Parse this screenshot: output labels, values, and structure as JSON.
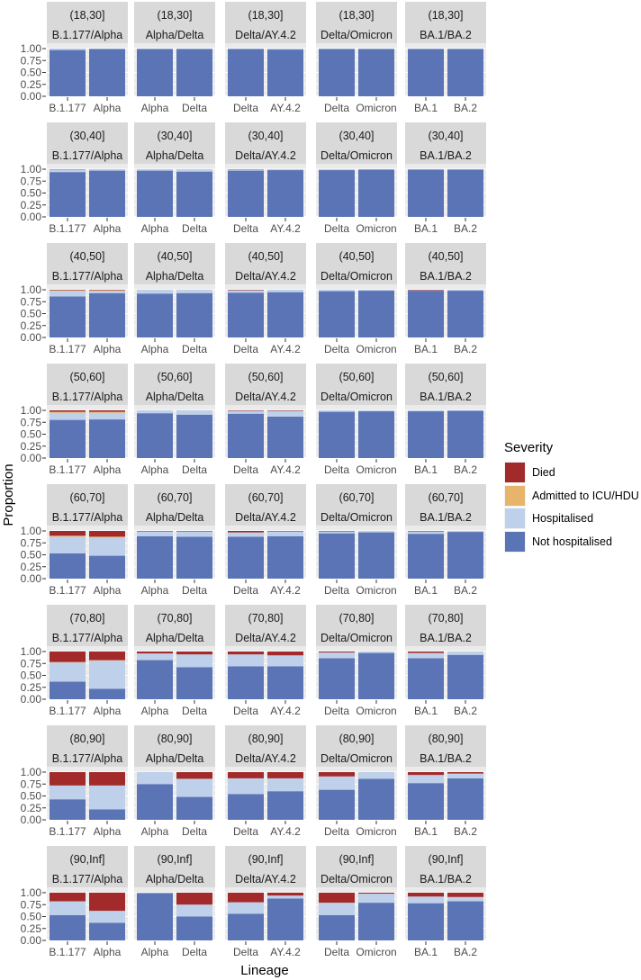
{
  "chart_data": {
    "type": "bar",
    "stacked": true,
    "xlabel": "Lineage",
    "ylabel": "Proportion",
    "ylim": [
      0,
      1
    ],
    "y_ticks": [
      "0.00",
      "0.25",
      "0.50",
      "0.75",
      "1.00"
    ],
    "legend": {
      "title": "Severity",
      "position": "right",
      "items": [
        {
          "name": "Died",
          "color": "#a32a2a"
        },
        {
          "name": "Admitted to ICU/HDU",
          "color": "#e6b46a"
        },
        {
          "name": "Hospitalised",
          "color": "#bed0ea"
        },
        {
          "name": "Not hospitalised",
          "color": "#5b74b6"
        }
      ]
    },
    "columns": [
      {
        "label": "B.1.177/Alpha",
        "categories": [
          "B.1.177",
          "Alpha"
        ]
      },
      {
        "label": "Alpha/Delta",
        "categories": [
          "Alpha",
          "Delta"
        ]
      },
      {
        "label": "Delta/AY.4.2",
        "categories": [
          "Delta",
          "AY.4.2"
        ]
      },
      {
        "label": "Delta/Omicron",
        "categories": [
          "Delta",
          "Omicron"
        ]
      },
      {
        "label": "BA.1/BA.2",
        "categories": [
          "BA.1",
          "BA.2"
        ]
      }
    ],
    "rows": [
      {
        "age": "(18,30]",
        "panels": [
          [
            {
              "not": 0.97,
              "hosp": 0.03,
              "icu": 0.0,
              "died": 0.0
            },
            {
              "not": 0.99,
              "hosp": 0.01,
              "icu": 0.0,
              "died": 0.0
            }
          ],
          [
            {
              "not": 0.99,
              "hosp": 0.01,
              "icu": 0.0,
              "died": 0.0
            },
            {
              "not": 0.99,
              "hosp": 0.01,
              "icu": 0.0,
              "died": 0.0
            }
          ],
          [
            {
              "not": 0.99,
              "hosp": 0.01,
              "icu": 0.0,
              "died": 0.0
            },
            {
              "not": 0.98,
              "hosp": 0.02,
              "icu": 0.0,
              "died": 0.0
            }
          ],
          [
            {
              "not": 0.99,
              "hosp": 0.01,
              "icu": 0.0,
              "died": 0.0
            },
            {
              "not": 0.99,
              "hosp": 0.01,
              "icu": 0.0,
              "died": 0.0
            }
          ],
          [
            {
              "not": 0.99,
              "hosp": 0.01,
              "icu": 0.0,
              "died": 0.0
            },
            {
              "not": 0.99,
              "hosp": 0.01,
              "icu": 0.0,
              "died": 0.0
            }
          ]
        ]
      },
      {
        "age": "(30,40]",
        "panels": [
          [
            {
              "not": 0.94,
              "hosp": 0.05,
              "icu": 0.005,
              "died": 0.005
            },
            {
              "not": 0.97,
              "hosp": 0.03,
              "icu": 0.0,
              "died": 0.0
            }
          ],
          [
            {
              "not": 0.97,
              "hosp": 0.03,
              "icu": 0.0,
              "died": 0.0
            },
            {
              "not": 0.95,
              "hosp": 0.05,
              "icu": 0.0,
              "died": 0.0
            }
          ],
          [
            {
              "not": 0.97,
              "hosp": 0.025,
              "icu": 0.0,
              "died": 0.005
            },
            {
              "not": 0.98,
              "hosp": 0.02,
              "icu": 0.0,
              "died": 0.0
            }
          ],
          [
            {
              "not": 0.98,
              "hosp": 0.02,
              "icu": 0.0,
              "died": 0.0
            },
            {
              "not": 0.99,
              "hosp": 0.01,
              "icu": 0.0,
              "died": 0.0
            }
          ],
          [
            {
              "not": 0.99,
              "hosp": 0.01,
              "icu": 0.0,
              "died": 0.0
            },
            {
              "not": 0.99,
              "hosp": 0.01,
              "icu": 0.0,
              "died": 0.0
            }
          ]
        ]
      },
      {
        "age": "(40,50]",
        "panels": [
          [
            {
              "not": 0.86,
              "hosp": 0.12,
              "icu": 0.01,
              "died": 0.01
            },
            {
              "not": 0.93,
              "hosp": 0.05,
              "icu": 0.01,
              "died": 0.01
            }
          ],
          [
            {
              "not": 0.92,
              "hosp": 0.08,
              "icu": 0.0,
              "died": 0.0
            },
            {
              "not": 0.93,
              "hosp": 0.07,
              "icu": 0.0,
              "died": 0.0
            }
          ],
          [
            {
              "not": 0.94,
              "hosp": 0.05,
              "icu": 0.0,
              "died": 0.01
            },
            {
              "not": 0.95,
              "hosp": 0.05,
              "icu": 0.0,
              "died": 0.0
            }
          ],
          [
            {
              "not": 0.97,
              "hosp": 0.03,
              "icu": 0.0,
              "died": 0.0
            },
            {
              "not": 0.98,
              "hosp": 0.02,
              "icu": 0.0,
              "died": 0.0
            }
          ],
          [
            {
              "not": 0.98,
              "hosp": 0.01,
              "icu": 0.0,
              "died": 0.01
            },
            {
              "not": 0.98,
              "hosp": 0.02,
              "icu": 0.0,
              "died": 0.0
            }
          ]
        ]
      },
      {
        "age": "(50,60]",
        "panels": [
          [
            {
              "not": 0.8,
              "hosp": 0.15,
              "icu": 0.02,
              "died": 0.03
            },
            {
              "not": 0.81,
              "hosp": 0.14,
              "icu": 0.02,
              "died": 0.03
            }
          ],
          [
            {
              "not": 0.94,
              "hosp": 0.06,
              "icu": 0.0,
              "died": 0.0
            },
            {
              "not": 0.91,
              "hosp": 0.09,
              "icu": 0.0,
              "died": 0.0
            }
          ],
          [
            {
              "not": 0.93,
              "hosp": 0.06,
              "icu": 0.0,
              "died": 0.01
            },
            {
              "not": 0.87,
              "hosp": 0.12,
              "icu": 0.0,
              "died": 0.01
            }
          ],
          [
            {
              "not": 0.97,
              "hosp": 0.03,
              "icu": 0.0,
              "died": 0.0
            },
            {
              "not": 0.98,
              "hosp": 0.02,
              "icu": 0.0,
              "died": 0.0
            }
          ],
          [
            {
              "not": 0.98,
              "hosp": 0.02,
              "icu": 0.0,
              "died": 0.0
            },
            {
              "not": 0.99,
              "hosp": 0.01,
              "icu": 0.0,
              "died": 0.0
            }
          ]
        ]
      },
      {
        "age": "(60,70]",
        "panels": [
          [
            {
              "not": 0.53,
              "hosp": 0.35,
              "icu": 0.02,
              "died": 0.1
            },
            {
              "not": 0.48,
              "hosp": 0.38,
              "icu": 0.02,
              "died": 0.12
            }
          ],
          [
            {
              "not": 0.89,
              "hosp": 0.1,
              "icu": 0.0,
              "died": 0.01
            },
            {
              "not": 0.88,
              "hosp": 0.11,
              "icu": 0.0,
              "died": 0.01
            }
          ],
          [
            {
              "not": 0.88,
              "hosp": 0.09,
              "icu": 0.0,
              "died": 0.03
            },
            {
              "not": 0.89,
              "hosp": 0.1,
              "icu": 0.0,
              "died": 0.01
            }
          ],
          [
            {
              "not": 0.95,
              "hosp": 0.04,
              "icu": 0.0,
              "died": 0.01
            },
            {
              "not": 0.97,
              "hosp": 0.03,
              "icu": 0.0,
              "died": 0.0
            }
          ],
          [
            {
              "not": 0.94,
              "hosp": 0.05,
              "icu": 0.0,
              "died": 0.01
            },
            {
              "not": 0.98,
              "hosp": 0.02,
              "icu": 0.0,
              "died": 0.0
            }
          ]
        ]
      },
      {
        "age": "(70,80]",
        "panels": [
          [
            {
              "not": 0.37,
              "hosp": 0.4,
              "icu": 0.01,
              "died": 0.22
            },
            {
              "not": 0.22,
              "hosp": 0.59,
              "icu": 0.01,
              "died": 0.18
            }
          ],
          [
            {
              "not": 0.82,
              "hosp": 0.14,
              "icu": 0.0,
              "died": 0.04
            },
            {
              "not": 0.67,
              "hosp": 0.27,
              "icu": 0.0,
              "died": 0.06
            }
          ],
          [
            {
              "not": 0.69,
              "hosp": 0.25,
              "icu": 0.0,
              "died": 0.06
            },
            {
              "not": 0.69,
              "hosp": 0.23,
              "icu": 0.0,
              "died": 0.08
            }
          ],
          [
            {
              "not": 0.86,
              "hosp": 0.12,
              "icu": 0.0,
              "died": 0.02
            },
            {
              "not": 0.97,
              "hosp": 0.03,
              "icu": 0.0,
              "died": 0.0
            }
          ],
          [
            {
              "not": 0.86,
              "hosp": 0.11,
              "icu": 0.0,
              "died": 0.03
            },
            {
              "not": 0.93,
              "hosp": 0.07,
              "icu": 0.0,
              "died": 0.0
            }
          ]
        ]
      },
      {
        "age": "(80,90]",
        "panels": [
          [
            {
              "not": 0.43,
              "hosp": 0.29,
              "icu": 0.0,
              "died": 0.28
            },
            {
              "not": 0.22,
              "hosp": 0.5,
              "icu": 0.0,
              "died": 0.28
            }
          ],
          [
            {
              "not": 0.75,
              "hosp": 0.25,
              "icu": 0.0,
              "died": 0.0
            },
            {
              "not": 0.48,
              "hosp": 0.38,
              "icu": 0.0,
              "died": 0.14
            }
          ],
          [
            {
              "not": 0.54,
              "hosp": 0.33,
              "icu": 0.0,
              "died": 0.13
            },
            {
              "not": 0.6,
              "hosp": 0.27,
              "icu": 0.0,
              "died": 0.13
            }
          ],
          [
            {
              "not": 0.63,
              "hosp": 0.28,
              "icu": 0.0,
              "died": 0.09
            },
            {
              "not": 0.86,
              "hosp": 0.14,
              "icu": 0.0,
              "died": 0.0
            }
          ],
          [
            {
              "not": 0.77,
              "hosp": 0.17,
              "icu": 0.0,
              "died": 0.06
            },
            {
              "not": 0.87,
              "hosp": 0.1,
              "icu": 0.0,
              "died": 0.03
            }
          ]
        ]
      },
      {
        "age": "(90,Inf]",
        "panels": [
          [
            {
              "not": 0.53,
              "hosp": 0.29,
              "icu": 0.0,
              "died": 0.18
            },
            {
              "not": 0.37,
              "hosp": 0.25,
              "icu": 0.0,
              "died": 0.38
            }
          ],
          [
            {
              "not": 0.99,
              "hosp": 0.01,
              "icu": 0.0,
              "died": 0.0
            },
            {
              "not": 0.5,
              "hosp": 0.25,
              "icu": 0.0,
              "died": 0.25
            }
          ],
          [
            {
              "not": 0.56,
              "hosp": 0.24,
              "icu": 0.0,
              "died": 0.2
            },
            {
              "not": 0.88,
              "hosp": 0.06,
              "icu": 0.0,
              "died": 0.06
            }
          ],
          [
            {
              "not": 0.53,
              "hosp": 0.26,
              "icu": 0.0,
              "died": 0.21
            },
            {
              "not": 0.79,
              "hosp": 0.19,
              "icu": 0.0,
              "died": 0.02
            }
          ],
          [
            {
              "not": 0.78,
              "hosp": 0.14,
              "icu": 0.0,
              "died": 0.08
            },
            {
              "not": 0.82,
              "hosp": 0.09,
              "icu": 0.0,
              "died": 0.09
            }
          ]
        ]
      }
    ]
  }
}
